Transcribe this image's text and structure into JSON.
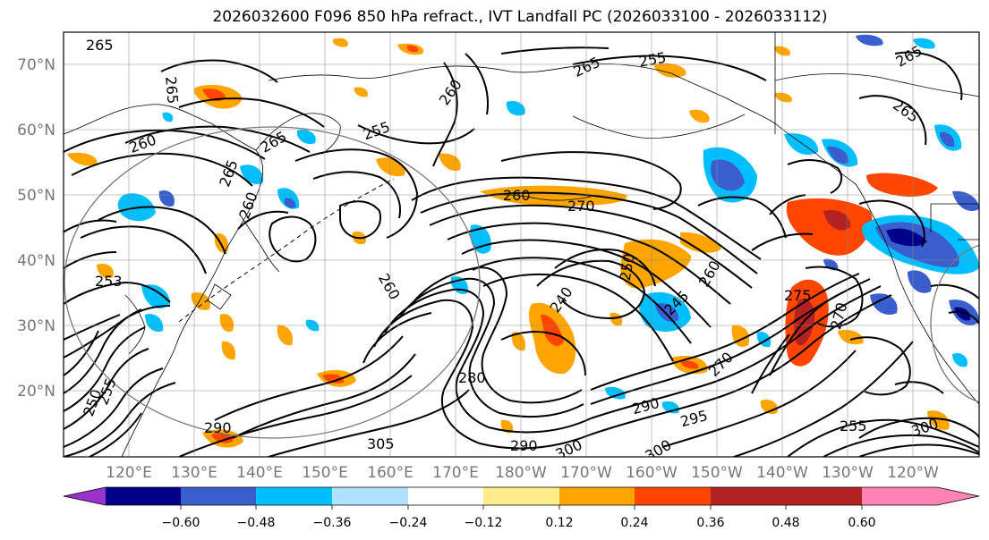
{
  "title": "2026032600 F096 850 hPa refract., IVT Landfall PC (2026033100 - 2026033112)",
  "lat_labels": [
    "70°N",
    "60°N",
    "50°N",
    "40°N",
    "30°N",
    "20°N"
  ],
  "lon_labels": [
    "120°E",
    "130°E",
    "140°E",
    "150°E",
    "160°E",
    "170°E",
    "180°W",
    "170°W",
    "160°W",
    "150°W",
    "140°W",
    "130°W",
    "120°W"
  ],
  "colorbar": {
    "colors": [
      "#9932cc",
      "#00008b",
      "#3a5fcd",
      "#00bfff",
      "#b0e2ff",
      "#ffffff",
      "#ffec8b",
      "#ffa500",
      "#ff4500",
      "#b22222",
      "#ff83b4"
    ],
    "tick_labels": [
      "−0.60",
      "−0.48",
      "−0.36",
      "−0.24",
      "−0.12",
      "0.12",
      "0.24",
      "0.36",
      "0.48",
      "0.60"
    ]
  },
  "contour_labels": [
    "265",
    "265",
    "260",
    "265",
    "255",
    "260",
    "265",
    "260",
    "255",
    "260",
    "270",
    "265",
    "250",
    "240",
    "245",
    "260",
    "275",
    "270",
    "270",
    "280",
    "290",
    "290",
    "295",
    "300",
    "290",
    "300",
    "305",
    "300",
    "255",
    "250",
    "255",
    "265",
    "260",
    "265",
    "253"
  ]
}
